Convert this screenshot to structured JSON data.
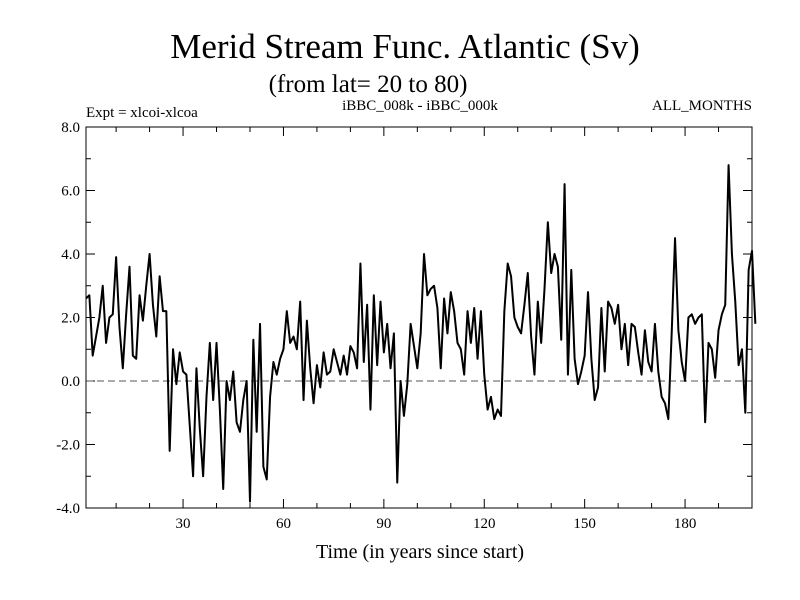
{
  "chart_data": {
    "type": "line",
    "title": "Merid Stream Func. Atlantic (Sv)",
    "subtitle": "(from lat= 20 to 80)",
    "info_left": "Expt = xlcoi-xlcoa",
    "info_center": "iBBC_008k - iBBC_000k",
    "info_right": "ALL_MONTHS",
    "xlabel": "Time (in years since start)",
    "ylabel": "",
    "xlim": [
      1,
      200
    ],
    "ylim": [
      -4.0,
      8.0
    ],
    "xticks": [
      {
        "value": 30,
        "label": "30"
      },
      {
        "value": 60,
        "label": "60"
      },
      {
        "value": 90,
        "label": "90"
      },
      {
        "value": 120,
        "label": "120"
      },
      {
        "value": 150,
        "label": "150"
      },
      {
        "value": 180,
        "label": "180"
      }
    ],
    "yticks": [
      {
        "value": -4,
        "label": "-4.0"
      },
      {
        "value": -2,
        "label": "-2.0"
      },
      {
        "value": 0,
        "label": "0.0"
      },
      {
        "value": 2,
        "label": "2.0"
      },
      {
        "value": 4,
        "label": "4.0"
      },
      {
        "value": 6,
        "label": "6.0"
      },
      {
        "value": 8,
        "label": "8.0"
      }
    ],
    "reference_line": {
      "y": 0,
      "style": "dashed"
    },
    "series": [
      {
        "name": "iBBC_008k - iBBC_000k",
        "color": "#000000",
        "x_start": 1,
        "values": [
          2.6,
          2.7,
          0.8,
          1.4,
          2.0,
          3.0,
          1.2,
          2.0,
          2.1,
          3.9,
          1.7,
          0.4,
          2.1,
          3.6,
          0.8,
          0.7,
          2.7,
          1.9,
          3.0,
          4.0,
          2.4,
          1.4,
          3.3,
          2.2,
          2.2,
          -2.2,
          1.0,
          -0.1,
          0.9,
          0.3,
          0.2,
          -1.4,
          -3.0,
          0.4,
          -1.5,
          -3.0,
          -0.5,
          1.2,
          -0.6,
          1.2,
          -0.9,
          -3.4,
          0.0,
          -0.6,
          0.3,
          -1.3,
          -1.6,
          -0.6,
          0.0,
          -3.8,
          1.3,
          -1.6,
          1.8,
          -2.7,
          -3.1,
          -0.5,
          0.6,
          0.2,
          0.7,
          1.0,
          2.2,
          1.2,
          1.4,
          1.0,
          2.5,
          -0.6,
          1.9,
          0.4,
          -0.7,
          0.5,
          -0.2,
          0.9,
          0.2,
          0.3,
          1.0,
          0.6,
          0.2,
          0.8,
          0.2,
          1.1,
          0.9,
          0.4,
          3.7,
          0.6,
          2.4,
          -0.9,
          2.7,
          0.5,
          2.5,
          0.9,
          1.8,
          0.4,
          1.5,
          -3.2,
          0.0,
          -1.1,
          -0.1,
          1.8,
          1.1,
          0.4,
          1.5,
          4.0,
          2.7,
          2.9,
          3.0,
          2.3,
          0.4,
          2.6,
          1.5,
          2.8,
          2.2,
          1.2,
          1.0,
          0.2,
          2.2,
          1.2,
          2.3,
          0.7,
          2.2,
          0.2,
          -0.9,
          -0.5,
          -1.2,
          -0.9,
          -1.1,
          2.2,
          3.7,
          3.3,
          2.0,
          1.7,
          1.5,
          2.4,
          3.4,
          1.4,
          0.2,
          2.5,
          1.2,
          2.9,
          5.0,
          3.4,
          4.0,
          3.6,
          1.3,
          6.2,
          0.2,
          3.5,
          0.7,
          -0.1,
          0.3,
          0.8,
          2.8,
          0.7,
          -0.6,
          -0.2,
          2.3,
          0.3,
          2.5,
          2.3,
          1.8,
          2.4,
          1.0,
          1.8,
          0.5,
          1.8,
          1.7,
          0.9,
          0.2,
          1.6,
          0.6,
          0.3,
          1.8,
          0.3,
          -0.5,
          -0.7,
          -1.2,
          1.5,
          4.5,
          1.6,
          0.6,
          0.0,
          2.0,
          2.1,
          1.8,
          2.0,
          2.1,
          -1.3,
          1.2,
          1.0,
          0.1,
          1.6,
          2.1,
          2.4,
          6.8,
          4.0,
          2.5,
          0.5,
          1.0,
          -1.0,
          3.5,
          4.1,
          1.8
        ]
      }
    ]
  }
}
